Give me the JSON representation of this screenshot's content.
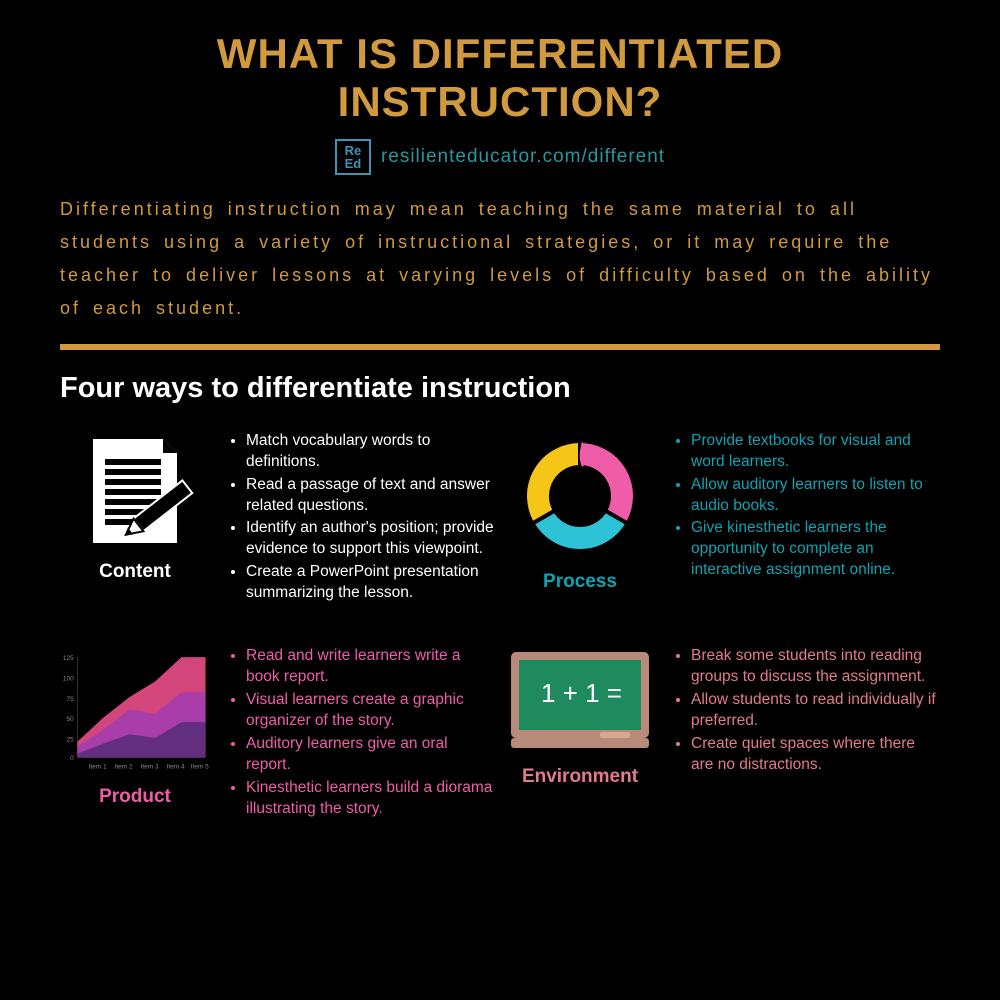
{
  "title": "WHAT IS DIFFERENTIATED INSTRUCTION?",
  "title_color": "#d19a3f",
  "title_fontsize": 42,
  "logo_lines": [
    "Re",
    "Ed"
  ],
  "url": "resilienteducator.com/different",
  "url_color": "#2a969e",
  "url_fontsize": 19,
  "intro": "Differentiating instruction may mean teaching the same material to all students using a variety of instructional strategies, or it may require the teacher to deliver lessons at varying levels of difficulty based on the ability of each student.",
  "intro_color": "#d19a3f",
  "intro_fontsize": 18,
  "divider_color": "#d19a3f",
  "subheading": "Four ways to differentiate instruction",
  "subheading_fontsize": 29,
  "list_fontsize": 15.5,
  "sections": {
    "content": {
      "label": "Content",
      "label_color": "#ffffff",
      "text_color": "#ffffff",
      "items": [
        "Match vocabulary words to definitions.",
        "Read a passage of text and answer related questions.",
        "Identify an author's position; provide evidence to support this viewpoint.",
        "Create a PowerPoint presentation summarizing the lesson."
      ]
    },
    "process": {
      "label": "Process",
      "label_color": "#0fa3b1",
      "text_color": "#0fa3b1",
      "items": [
        "Provide textbooks for visual and word learners.",
        "Allow auditory learners to listen to audio books.",
        "Give kinesthetic learners the opportunity to complete an interactive assignment online."
      ],
      "donut_colors": [
        "#ef5da8",
        "#2dc2d6",
        "#f5c518"
      ]
    },
    "product": {
      "label": "Product",
      "label_color": "#ef5da8",
      "text_color": "#ef5da8",
      "items": [
        "Read and write learners write a book report.",
        "Visual learners create a graphic organizer of the story.",
        "Auditory learners give an oral report.",
        "Kinesthetic learners build a diorama illustrating the story."
      ],
      "chart": {
        "x_items": [
          "Item 1",
          "Item 2",
          "Item 3",
          "Item 4",
          "Item 5"
        ],
        "y_ticks": [
          0,
          25,
          50,
          75,
          100,
          125
        ],
        "series_colors": [
          "#a23db3",
          "#e94e8a",
          "#5a2d7a"
        ],
        "series1": [
          15,
          35,
          60,
          55,
          80
        ],
        "series2": [
          20,
          50,
          75,
          95,
          125
        ],
        "series3": [
          5,
          18,
          30,
          25,
          45
        ]
      }
    },
    "environment": {
      "label": "Environment",
      "label_color": "#e37b8a",
      "text_color": "#e37b8a",
      "items": [
        "Break some students into reading groups to discuss the assignment.",
        "Allow students to read individually if preferred.",
        "Create quiet spaces where there are no distractions."
      ],
      "board_text": "1 + 1 =",
      "board_color": "#1f8a5e",
      "board_frame": "#b88a7a"
    }
  }
}
